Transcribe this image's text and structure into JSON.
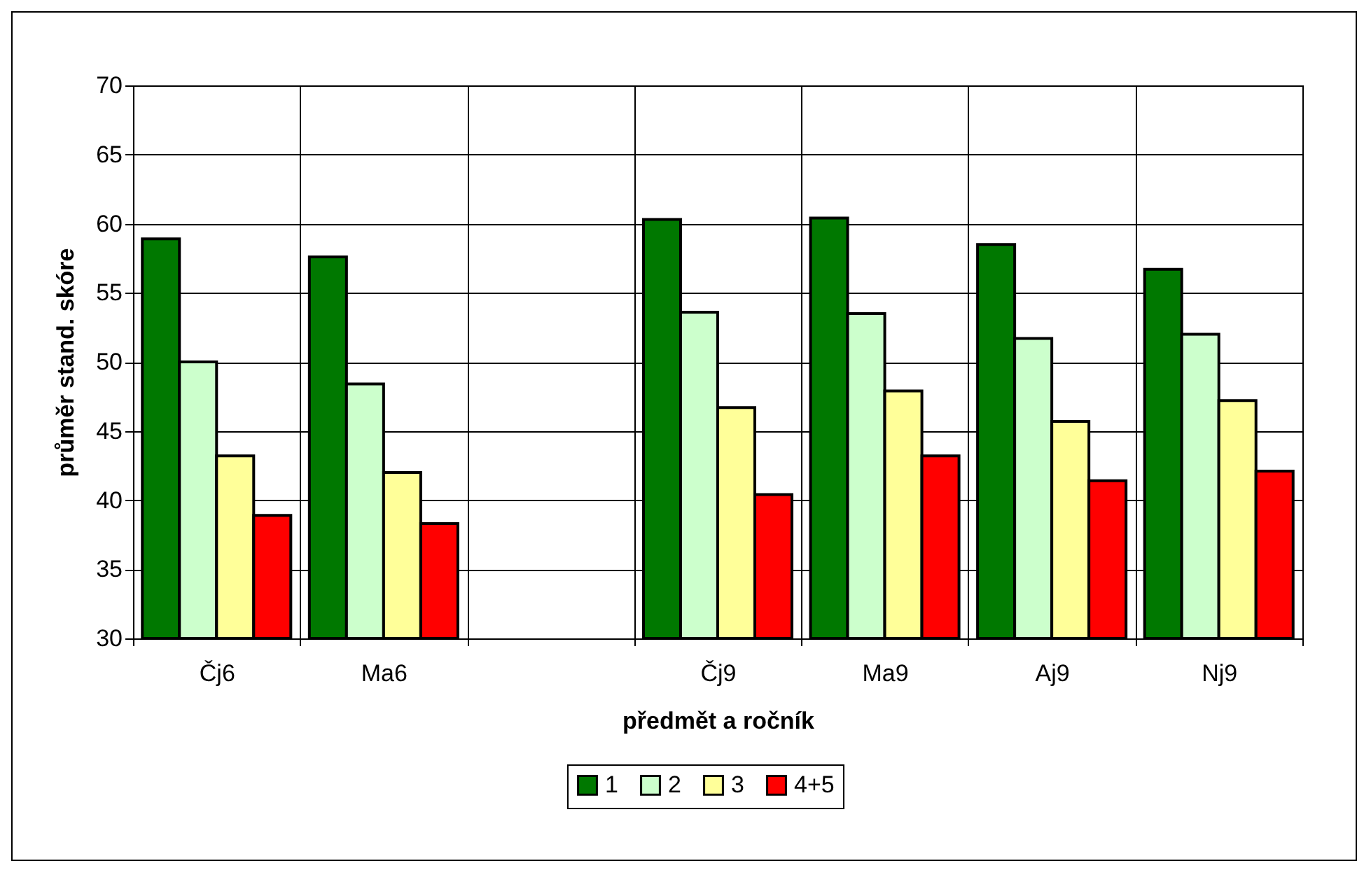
{
  "chart_data": {
    "type": "bar",
    "xlabel": "předmět a ročník",
    "ylabel": "průměr stand. skóre",
    "categories": [
      "Čj6",
      "Ma6",
      null,
      "Čj9",
      "Ma9",
      "Aj9",
      "Nj9"
    ],
    "series": [
      {
        "name": "1",
        "color": "#007800",
        "values": [
          58.9,
          57.6,
          null,
          60.3,
          60.4,
          58.5,
          56.7
        ]
      },
      {
        "name": "2",
        "color": "#ccffcc",
        "values": [
          50.0,
          48.4,
          null,
          53.6,
          53.5,
          51.7,
          52.0
        ]
      },
      {
        "name": "3",
        "color": "#ffff99",
        "values": [
          43.2,
          42.0,
          null,
          46.7,
          47.9,
          45.7,
          47.2
        ]
      },
      {
        "name": "4+5",
        "color": "#ff0000",
        "values": [
          38.9,
          38.3,
          null,
          40.4,
          43.2,
          41.4,
          42.1
        ]
      }
    ],
    "ylim": [
      30,
      70
    ],
    "yticks": [
      30,
      35,
      40,
      45,
      50,
      55,
      60,
      65,
      70
    ],
    "grid": true,
    "legend": "bottom"
  }
}
